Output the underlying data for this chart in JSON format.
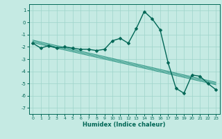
{
  "x": [
    0,
    1,
    2,
    3,
    4,
    5,
    6,
    7,
    8,
    9,
    10,
    11,
    12,
    13,
    14,
    15,
    16,
    17,
    18,
    19,
    20,
    21,
    22,
    23
  ],
  "y_main": [
    -1.7,
    -2.1,
    -1.9,
    -2.1,
    -2.0,
    -2.1,
    -2.2,
    -2.2,
    -2.3,
    -2.2,
    -1.5,
    -1.3,
    -1.7,
    -0.5,
    0.9,
    0.3,
    -0.6,
    -3.3,
    -5.4,
    -5.8,
    -4.3,
    -4.4,
    -5.0,
    -5.5
  ],
  "y_trend1": [
    -1.45,
    -1.6,
    -1.75,
    -1.9,
    -2.05,
    -2.2,
    -2.35,
    -2.5,
    -2.65,
    -2.8,
    -2.95,
    -3.1,
    -3.25,
    -3.4,
    -3.55,
    -3.7,
    -3.85,
    -4.0,
    -4.15,
    -4.3,
    -4.45,
    -4.6,
    -4.75,
    -4.9
  ],
  "y_trend2": [
    -1.55,
    -1.7,
    -1.85,
    -2.0,
    -2.15,
    -2.3,
    -2.45,
    -2.6,
    -2.75,
    -2.9,
    -3.05,
    -3.2,
    -3.35,
    -3.5,
    -3.65,
    -3.8,
    -3.95,
    -4.1,
    -4.25,
    -4.4,
    -4.55,
    -4.7,
    -4.85,
    -5.0
  ],
  "y_trend3": [
    -1.65,
    -1.8,
    -1.95,
    -2.1,
    -2.25,
    -2.4,
    -2.55,
    -2.7,
    -2.85,
    -3.0,
    -3.15,
    -3.3,
    -3.45,
    -3.6,
    -3.75,
    -3.9,
    -4.05,
    -4.2,
    -4.35,
    -4.5,
    -4.65,
    -4.8,
    -4.95,
    -5.1
  ],
  "bg_color": "#c5eae3",
  "grid_color": "#9dd4ca",
  "line_color": "#006655",
  "trend_color": "#339988",
  "marker": "D",
  "markersize": 2.5,
  "linewidth": 1.0,
  "trend_linewidth": 0.8,
  "xlabel": "Humidex (Indice chaleur)",
  "xlim": [
    -0.5,
    23.5
  ],
  "ylim": [
    -7.5,
    1.5
  ],
  "yticks": [
    1,
    0,
    -1,
    -2,
    -3,
    -4,
    -5,
    -6,
    -7
  ],
  "xticks": [
    0,
    1,
    2,
    3,
    4,
    5,
    6,
    7,
    8,
    9,
    10,
    11,
    12,
    13,
    14,
    15,
    16,
    17,
    18,
    19,
    20,
    21,
    22,
    23
  ]
}
